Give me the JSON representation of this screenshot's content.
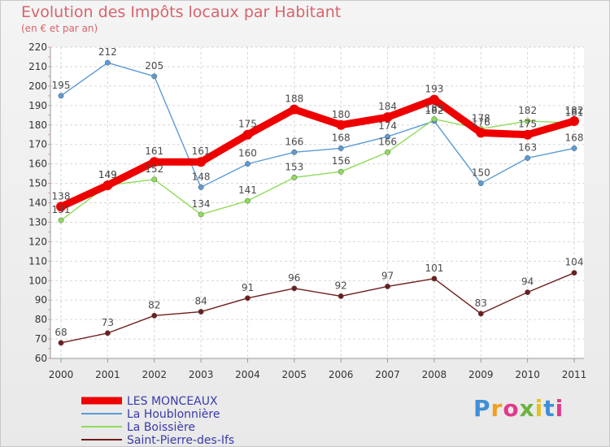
{
  "header": {
    "title": "Evolution des Impôts locaux par Habitant",
    "subtitle": "(en € et par an)"
  },
  "logo": {
    "text": "Proxiti",
    "colors": [
      "#3f8fd6",
      "#f0a020",
      "#e03b8b",
      "#6cb33f",
      "#e5c21d",
      "#3f8fd6",
      "#e03b8b"
    ]
  },
  "chart_data": {
    "type": "line",
    "title": "Evolution des Impôts locaux par Habitant",
    "subtitle": "(en € et par an)",
    "x": [
      "2000",
      "2001",
      "2002",
      "2003",
      "2004",
      "2005",
      "2006",
      "2007",
      "2008",
      "2009",
      "2010",
      "2011"
    ],
    "ylim": [
      60,
      220
    ],
    "yticks": [
      60,
      70,
      80,
      90,
      100,
      110,
      120,
      130,
      140,
      150,
      160,
      170,
      180,
      190,
      200,
      210,
      220
    ],
    "grid": true,
    "legend": "bottom-left",
    "series": [
      {
        "name": "LES MONCEAUX",
        "color": "#ee0000",
        "values": [
          138,
          149,
          161,
          161,
          175,
          188,
          180,
          184,
          193,
          176,
          175,
          182
        ]
      },
      {
        "name": "La Houblonnière",
        "color": "#5b9bd5",
        "values": [
          195,
          212,
          205,
          148,
          160,
          166,
          168,
          174,
          182,
          150,
          163,
          168
        ]
      },
      {
        "name": "La Boissière",
        "color": "#8fdc5a",
        "values": [
          131,
          149,
          152,
          134,
          141,
          153,
          156,
          166,
          183,
          178,
          182,
          181
        ]
      },
      {
        "name": "Saint-Pierre-des-Ifs",
        "color": "#6e1e1e",
        "values": [
          68,
          73,
          82,
          84,
          91,
          96,
          92,
          97,
          101,
          83,
          94,
          104
        ]
      }
    ]
  }
}
